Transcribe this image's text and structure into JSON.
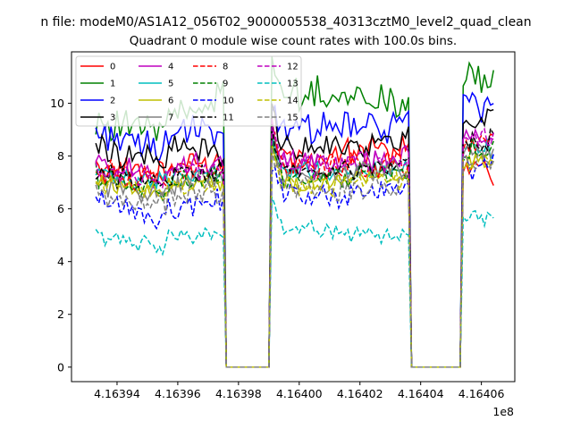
{
  "chart_data": {
    "type": "line",
    "suptitle": "n file: modeM0/AS1A12_056T02_9000005538_40313cztM0_level2_quad_clean",
    "title": "Quadrant 0 module wise count rates with 100.0s bins.",
    "xlabel": "",
    "ylabel": "",
    "x_offset_label": "1e8",
    "xlim": [
      4.163925,
      4.164071
    ],
    "ylim": [
      -0.55,
      11.95
    ],
    "x_ticks": [
      4.16394,
      4.16396,
      4.16398,
      4.164,
      4.16402,
      4.16404,
      4.16406
    ],
    "x_tick_labels": [
      "4.16394",
      "4.16396",
      "4.16398",
      "4.16400",
      "4.16402",
      "4.16404",
      "4.16406"
    ],
    "y_ticks": [
      0,
      2,
      4,
      6,
      8,
      10
    ],
    "y_tick_labels": [
      "0",
      "2",
      "4",
      "6",
      "8",
      "10"
    ],
    "grid": false,
    "legend_location": "top-left",
    "legend_columns": 4,
    "x_start": 4.163933,
    "x_step": 1e-06,
    "num_points": 132,
    "gap_ranges": [
      [
        4.163975,
        4.163991
      ],
      [
        4.164036,
        4.164054
      ]
    ],
    "series": [
      {
        "name": "0",
        "color": "#ff0000",
        "dashed": false,
        "levels": [
          7.6,
          7.4,
          7.8,
          8.4,
          7.5
        ],
        "amp": 0.45
      },
      {
        "name": "1",
        "color": "#008000",
        "dashed": false,
        "levels": [
          9.4,
          9.0,
          10.4,
          10.0,
          11.0
        ],
        "amp": 0.55
      },
      {
        "name": "2",
        "color": "#0000ff",
        "dashed": false,
        "levels": [
          9.0,
          8.3,
          9.0,
          9.2,
          10.0
        ],
        "amp": 0.5
      },
      {
        "name": "3",
        "color": "#000000",
        "dashed": false,
        "levels": [
          8.4,
          7.8,
          8.3,
          8.6,
          9.4
        ],
        "amp": 0.4
      },
      {
        "name": "4",
        "color": "#bf00bf",
        "dashed": false,
        "levels": [
          7.7,
          7.3,
          7.7,
          8.0,
          8.9
        ],
        "amp": 0.4
      },
      {
        "name": "5",
        "color": "#00bfbf",
        "dashed": false,
        "levels": [
          7.3,
          7.0,
          7.4,
          7.6,
          8.3
        ],
        "amp": 0.35
      },
      {
        "name": "6",
        "color": "#bfbf00",
        "dashed": false,
        "levels": [
          7.1,
          6.7,
          7.0,
          7.3,
          7.8
        ],
        "amp": 0.35
      },
      {
        "name": "7",
        "color": "#808080",
        "dashed": false,
        "levels": [
          7.0,
          6.6,
          7.3,
          7.5,
          8.2
        ],
        "amp": 0.35
      },
      {
        "name": "8",
        "color": "#ff0000",
        "dashed": true,
        "levels": [
          7.4,
          7.1,
          7.5,
          7.8,
          8.5
        ],
        "amp": 0.4
      },
      {
        "name": "9",
        "color": "#008000",
        "dashed": true,
        "levels": [
          7.2,
          6.8,
          7.1,
          7.4,
          8.2
        ],
        "amp": 0.4
      },
      {
        "name": "10",
        "color": "#0000ff",
        "dashed": true,
        "levels": [
          6.2,
          5.6,
          6.4,
          6.7,
          7.6
        ],
        "amp": 0.45
      },
      {
        "name": "11",
        "color": "#000000",
        "dashed": true,
        "levels": [
          7.3,
          7.0,
          7.4,
          7.7,
          8.6
        ],
        "amp": 0.35
      },
      {
        "name": "12",
        "color": "#bf00bf",
        "dashed": true,
        "levels": [
          7.5,
          7.1,
          7.6,
          7.9,
          8.7
        ],
        "amp": 0.35
      },
      {
        "name": "13",
        "color": "#00bfbf",
        "dashed": true,
        "levels": [
          5.0,
          4.6,
          5.2,
          4.9,
          5.7
        ],
        "amp": 0.25
      },
      {
        "name": "14",
        "color": "#bfbf00",
        "dashed": true,
        "levels": [
          7.0,
          6.6,
          6.9,
          7.2,
          7.9
        ],
        "amp": 0.35
      },
      {
        "name": "15",
        "color": "#808080",
        "dashed": true,
        "levels": [
          6.5,
          6.2,
          6.8,
          7.0,
          7.7
        ],
        "amp": 0.4
      }
    ]
  }
}
